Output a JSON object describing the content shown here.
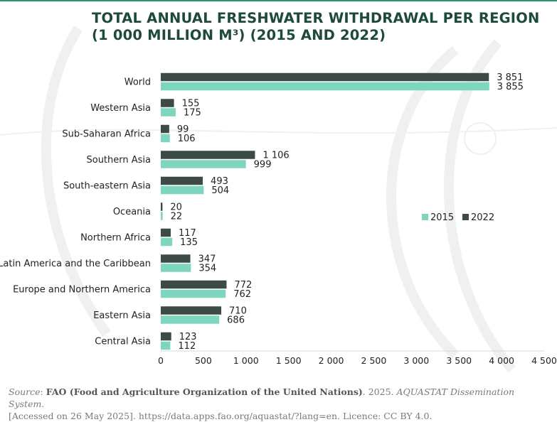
{
  "colors": {
    "title": "#1e4a3b",
    "series_2015": "#7fd6bf",
    "series_2022": "#3d4b47",
    "text": "#222222",
    "accent_rule": "#2f8f6f",
    "decor": "#eef1ef"
  },
  "source": {
    "label": "Source",
    "org": "FAO (Food and Agriculture Organization of the United Nations)",
    "year": ". 2025. ",
    "publication": "AQUASTAT Dissemination System.",
    "accessed": "[Accessed on 26 May 2025]. https://data.apps.fao.org/aquastat/?lang=en. Licence: CC BY 4.0."
  },
  "chart_data": {
    "type": "bar",
    "orientation": "horizontal",
    "title": [
      "TOTAL ANNUAL FRESHWATER WITHDRAWAL PER REGION",
      "(1 000 MILLION M³) (2015 AND 2022)"
    ],
    "categories": [
      "World",
      "Western Asia",
      "Sub-Saharan Africa",
      "Southern Asia",
      "South-eastern Asia",
      "Oceania",
      "Northern Africa",
      "Latin America and the Caribbean",
      "Europe and Northern America",
      "Eastern Asia",
      "Central Asia"
    ],
    "series": [
      {
        "name": "2022",
        "color_key": "series_2022",
        "values": [
          3851,
          155,
          99,
          1106,
          493,
          20,
          117,
          347,
          772,
          710,
          123
        ],
        "labels": [
          "3 851",
          "155",
          "99",
          "1 106",
          "493",
          "20",
          "117",
          "347",
          "772",
          "710",
          "123"
        ]
      },
      {
        "name": "2015",
        "color_key": "series_2015",
        "values": [
          3855,
          175,
          106,
          999,
          504,
          22,
          135,
          354,
          762,
          686,
          112
        ],
        "labels": [
          "3 855",
          "175",
          "106",
          "999",
          "504",
          "22",
          "135",
          "354",
          "762",
          "686",
          "112"
        ]
      }
    ],
    "legend_order": [
      "2015",
      "2022"
    ],
    "legend_position": "right",
    "xlim": [
      0,
      4500
    ],
    "xticks": [
      0,
      500,
      1000,
      1500,
      2000,
      2500,
      3000,
      3500,
      4000,
      4500
    ],
    "xtick_labels": [
      "0",
      "500",
      "1 000",
      "1 500",
      "2 000",
      "2 500",
      "3 000",
      "3 500",
      "4 000",
      "4 500"
    ],
    "xlabel": "",
    "ylabel": "",
    "grid": false
  }
}
